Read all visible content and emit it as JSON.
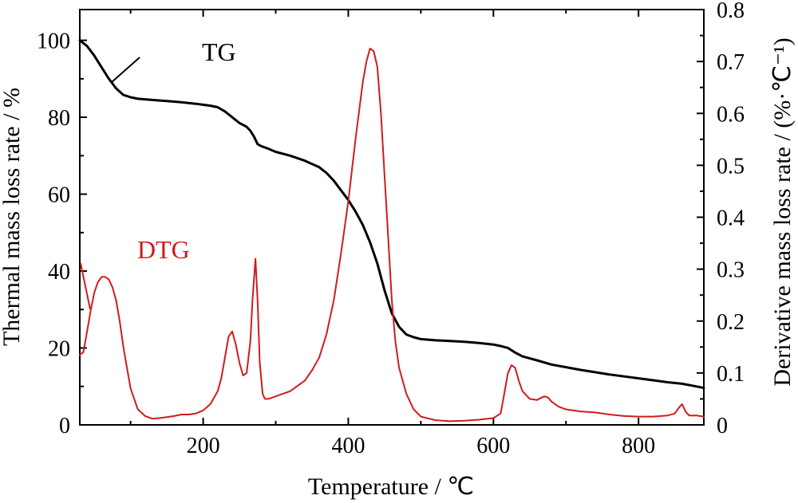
{
  "chart_data": {
    "type": "line",
    "xlabel": "Temperature / ℃",
    "ylabel_left": "Thermal mass loss rate / %",
    "ylabel_right": "Derivative mass loss rate / (%·℃⁻¹)",
    "xlim": [
      30,
      890
    ],
    "ylim_left": [
      0,
      108
    ],
    "ylim_right": [
      0,
      0.8
    ],
    "x_ticks": [
      200,
      400,
      600,
      800
    ],
    "y_ticks_left": [
      0,
      20,
      40,
      60,
      80,
      100
    ],
    "y_ticks_right": [
      0,
      0.1,
      0.2,
      0.3,
      0.4,
      0.5,
      0.6,
      0.7,
      0.8
    ],
    "grid": false,
    "colors": {
      "TG": "#000000",
      "DTG": "#d01c1c"
    },
    "series": [
      {
        "name": "TG",
        "axis": "left",
        "x": [
          30,
          40,
          50,
          60,
          70,
          80,
          90,
          100,
          110,
          130,
          150,
          170,
          190,
          210,
          220,
          230,
          240,
          250,
          260,
          265,
          270,
          275,
          280,
          290,
          300,
          320,
          340,
          360,
          370,
          380,
          390,
          400,
          410,
          420,
          430,
          440,
          450,
          460,
          470,
          480,
          490,
          500,
          520,
          540,
          560,
          580,
          600,
          610,
          620,
          630,
          640,
          660,
          680,
          700,
          720,
          740,
          760,
          780,
          800,
          820,
          840,
          860,
          880,
          890
        ],
        "y": [
          100,
          98.5,
          96,
          93,
          90,
          87.5,
          85.8,
          85.2,
          84.8,
          84.5,
          84.2,
          83.9,
          83.5,
          83,
          82.6,
          81.5,
          80,
          78.5,
          77.5,
          76.5,
          75,
          73,
          72.5,
          71.8,
          71,
          70,
          68.7,
          67,
          65.5,
          63.5,
          61,
          58.5,
          55.5,
          52,
          47.5,
          42,
          35,
          29,
          25.5,
          23.5,
          22.8,
          22.3,
          22,
          21.8,
          21.6,
          21.3,
          20.9,
          20.5,
          20,
          18.8,
          17.8,
          16.8,
          15.7,
          15,
          14.3,
          13.7,
          13.1,
          12.6,
          12.1,
          11.6,
          11.1,
          10.7,
          10,
          9.6
        ]
      },
      {
        "name": "DTG",
        "axis": "right",
        "x": [
          30,
          35,
          40,
          45,
          50,
          55,
          60,
          65,
          70,
          75,
          80,
          85,
          90,
          95,
          100,
          110,
          120,
          130,
          140,
          150,
          160,
          170,
          180,
          190,
          200,
          210,
          220,
          225,
          230,
          235,
          240,
          245,
          250,
          255,
          260,
          265,
          268,
          272,
          275,
          278,
          282,
          285,
          290,
          300,
          320,
          340,
          350,
          360,
          370,
          380,
          390,
          400,
          410,
          420,
          425,
          430,
          435,
          440,
          445,
          450,
          455,
          460,
          465,
          470,
          480,
          490,
          500,
          520,
          540,
          560,
          580,
          600,
          610,
          615,
          620,
          625,
          630,
          635,
          640,
          650,
          660,
          670,
          675,
          680,
          690,
          700,
          720,
          740,
          760,
          780,
          800,
          820,
          840,
          850,
          855,
          860,
          865,
          870,
          880,
          890
        ],
        "y": [
          0.135,
          0.14,
          0.18,
          0.22,
          0.255,
          0.275,
          0.285,
          0.285,
          0.28,
          0.265,
          0.24,
          0.2,
          0.15,
          0.11,
          0.07,
          0.03,
          0.017,
          0.012,
          0.013,
          0.015,
          0.017,
          0.02,
          0.02,
          0.022,
          0.028,
          0.04,
          0.065,
          0.09,
          0.13,
          0.17,
          0.18,
          0.155,
          0.12,
          0.095,
          0.1,
          0.16,
          0.24,
          0.32,
          0.24,
          0.12,
          0.06,
          0.05,
          0.05,
          0.055,
          0.065,
          0.085,
          0.105,
          0.13,
          0.175,
          0.24,
          0.33,
          0.43,
          0.55,
          0.66,
          0.7,
          0.725,
          0.72,
          0.69,
          0.6,
          0.48,
          0.36,
          0.24,
          0.16,
          0.11,
          0.06,
          0.03,
          0.016,
          0.009,
          0.007,
          0.008,
          0.01,
          0.013,
          0.022,
          0.06,
          0.1,
          0.115,
          0.11,
          0.085,
          0.065,
          0.05,
          0.048,
          0.055,
          0.053,
          0.045,
          0.035,
          0.03,
          0.026,
          0.024,
          0.02,
          0.017,
          0.016,
          0.016,
          0.018,
          0.022,
          0.032,
          0.04,
          0.025,
          0.018,
          0.018,
          0.016
        ]
      }
    ],
    "labels": [
      {
        "text": "TG",
        "series": "TG"
      },
      {
        "text": "DTG",
        "series": "DTG"
      }
    ]
  }
}
